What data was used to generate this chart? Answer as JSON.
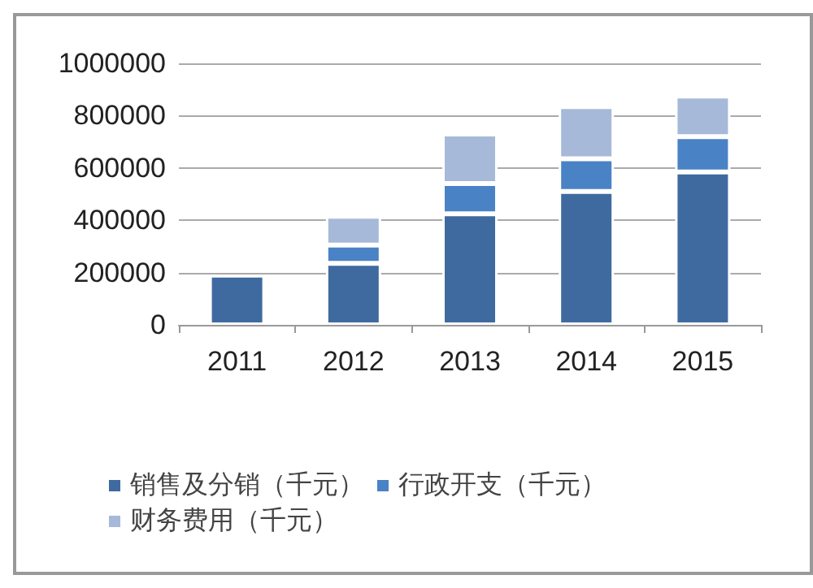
{
  "chart_data": {
    "type": "bar",
    "stacked": true,
    "categories": [
      "2011",
      "2012",
      "2013",
      "2014",
      "2015"
    ],
    "series": [
      {
        "name": "销售及分销（千元）",
        "color": "#3f6aa0",
        "values": [
          190000,
          235000,
          425000,
          510000,
          585000
        ]
      },
      {
        "name": "行政开支（千元）",
        "color": "#4a82c6",
        "values": [
          null,
          70000,
          115000,
          125000,
          135000
        ]
      },
      {
        "name": "财务费用（千元）",
        "color": "#a7b9d9",
        "values": [
          null,
          110000,
          190000,
          200000,
          155000
        ]
      }
    ],
    "ylim": [
      0,
      1000000
    ],
    "yticks": [
      0,
      200000,
      400000,
      600000,
      800000,
      1000000
    ],
    "grid": "y",
    "legend": "bottom"
  }
}
